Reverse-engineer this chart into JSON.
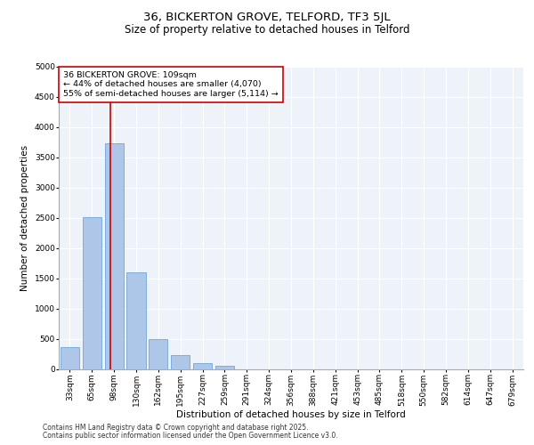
{
  "title_line1": "36, BICKERTON GROVE, TELFORD, TF3 5JL",
  "title_line2": "Size of property relative to detached houses in Telford",
  "xlabel": "Distribution of detached houses by size in Telford",
  "ylabel": "Number of detached properties",
  "categories": [
    "33sqm",
    "65sqm",
    "98sqm",
    "130sqm",
    "162sqm",
    "195sqm",
    "227sqm",
    "259sqm",
    "291sqm",
    "324sqm",
    "356sqm",
    "388sqm",
    "421sqm",
    "453sqm",
    "485sqm",
    "518sqm",
    "550sqm",
    "582sqm",
    "614sqm",
    "647sqm",
    "679sqm"
  ],
  "values": [
    370,
    2520,
    3740,
    1600,
    500,
    230,
    100,
    60,
    0,
    0,
    0,
    0,
    0,
    0,
    0,
    0,
    0,
    0,
    0,
    0,
    0
  ],
  "bar_color": "#aec6e8",
  "bar_edge_color": "#5b9bd5",
  "vline_color": "#cc0000",
  "annotation_text": "36 BICKERTON GROVE: 109sqm\n← 44% of detached houses are smaller (4,070)\n55% of semi-detached houses are larger (5,114) →",
  "annotation_box_color": "#ffffff",
  "annotation_box_edge": "#cc0000",
  "ylim": [
    0,
    5000
  ],
  "yticks": [
    0,
    500,
    1000,
    1500,
    2000,
    2500,
    3000,
    3500,
    4000,
    4500,
    5000
  ],
  "background_color": "#eef2f9",
  "grid_color": "#ffffff",
  "footer_line1": "Contains HM Land Registry data © Crown copyright and database right 2025.",
  "footer_line2": "Contains public sector information licensed under the Open Government Licence v3.0.",
  "title_fontsize": 9.5,
  "subtitle_fontsize": 8.5,
  "axis_label_fontsize": 7.5,
  "tick_fontsize": 6.5,
  "footer_fontsize": 5.5,
  "annotation_fontsize": 6.8
}
